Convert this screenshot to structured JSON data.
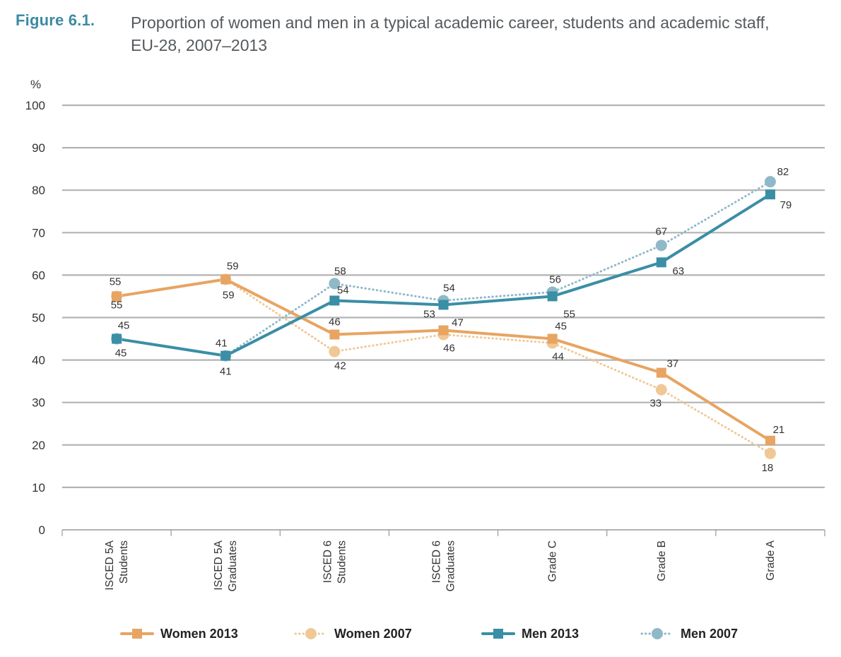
{
  "figure": {
    "label": "Figure 6.1.",
    "title": "Proportion of women and men in a typical academic career, students and academic staff,\nEU-28, 2007–2013"
  },
  "colors": {
    "women_2013": "#e8a462",
    "women_2007": "#f0c896",
    "men_2013": "#3a8ea6",
    "men_2007": "#8fb9c8",
    "grid": "#b3b3b3",
    "title_label": "#3d8aa3"
  },
  "chart_data": {
    "type": "line",
    "ylabel": "%",
    "ylim": [
      0,
      100
    ],
    "yticks": [
      "0",
      "10",
      "20",
      "30",
      "40",
      "50",
      "60",
      "70",
      "80",
      "90",
      "100"
    ],
    "categories": [
      [
        "ISCED 5A",
        "Students"
      ],
      [
        "ISCED 5A",
        "Graduates"
      ],
      [
        "ISCED 6",
        "Students"
      ],
      [
        "ISCED 6",
        "Graduates"
      ],
      [
        "Grade C"
      ],
      [
        "Grade B"
      ],
      [
        "Grade A"
      ]
    ],
    "series": [
      {
        "name": "Women 2013",
        "key": "women_2013",
        "marker": "square",
        "dashed": false,
        "values": [
          55,
          59,
          46,
          47,
          45,
          37,
          21
        ],
        "labels": [
          "55",
          "59",
          "46",
          "47",
          "45",
          "37",
          "21"
        ]
      },
      {
        "name": "Women 2007",
        "key": "women_2007",
        "marker": "circle",
        "dashed": true,
        "values": [
          55,
          59,
          42,
          46,
          44,
          33,
          18
        ],
        "labels": [
          "55",
          "59",
          "42",
          "46",
          "44",
          "33",
          "18"
        ]
      },
      {
        "name": "Men 2013",
        "key": "men_2013",
        "marker": "square",
        "dashed": false,
        "values": [
          45,
          41,
          54,
          53,
          55,
          63,
          79
        ],
        "labels": [
          "45",
          "41",
          "54",
          "53",
          "55",
          "63",
          "79"
        ]
      },
      {
        "name": "Men 2007",
        "key": "men_2007",
        "marker": "circle",
        "dashed": true,
        "values": [
          45,
          41,
          58,
          54,
          56,
          67,
          82
        ],
        "labels": [
          "45",
          "41",
          "58",
          "54",
          "56",
          "67",
          "82"
        ]
      }
    ],
    "grid": true,
    "legend_position": "bottom"
  }
}
